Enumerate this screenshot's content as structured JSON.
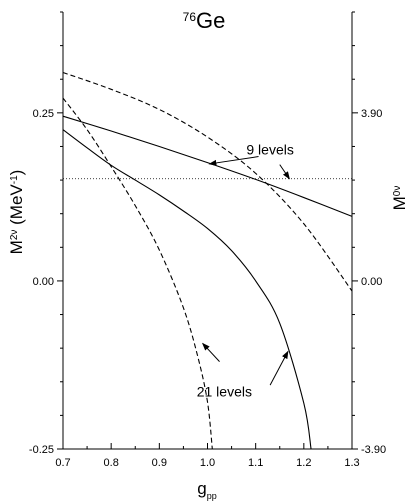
{
  "chart_data": {
    "type": "line",
    "title": {
      "mass_number": "76",
      "element": "Ge"
    },
    "xlabel": {
      "base": "g",
      "sub": "pp"
    },
    "ylabel_left": {
      "base": "M",
      "sup": "2ν",
      "unit_pre": " (MeV",
      "unit_sup": "-1",
      "unit_post": ")"
    },
    "ylabel_right": {
      "base": "M",
      "sup": "0ν"
    },
    "xlim": [
      0.7,
      1.3
    ],
    "ylim": [
      -0.25,
      0.4
    ],
    "x_ticks": [
      {
        "value": 0.7,
        "label": "0.7"
      },
      {
        "value": 0.8,
        "label": "0.8"
      },
      {
        "value": 0.9,
        "label": "0.9"
      },
      {
        "value": 1.0,
        "label": "1.0"
      },
      {
        "value": 1.1,
        "label": "1.1"
      },
      {
        "value": 1.2,
        "label": "1.2"
      },
      {
        "value": 1.3,
        "label": "1.3"
      }
    ],
    "y_left_ticks": [
      {
        "value": 0.25,
        "label": "0.25"
      },
      {
        "value": 0.0,
        "label": "0.00"
      },
      {
        "value": -0.25,
        "label": "-0.25"
      }
    ],
    "y_right_ticks": [
      {
        "value": 0.25,
        "label": "3.90"
      },
      {
        "value": 0.0,
        "label": "0.00"
      },
      {
        "value": -0.25,
        "label": "-3.90"
      }
    ],
    "horizontal_line": {
      "y": 0.152,
      "style": "dotted"
    },
    "series": [
      {
        "style": "solid",
        "x": [
          0.7,
          0.8,
          0.9,
          1.0,
          1.1,
          1.2,
          1.3
        ],
        "y": [
          0.245,
          0.223,
          0.2,
          0.176,
          0.151,
          0.124,
          0.096
        ]
      },
      {
        "style": "dashed",
        "x": [
          0.7,
          0.8,
          0.9,
          1.0,
          1.1,
          1.2,
          1.3
        ],
        "y": [
          0.31,
          0.285,
          0.255,
          0.214,
          0.16,
          0.085,
          -0.015
        ]
      },
      {
        "style": "solid",
        "x": [
          0.7,
          0.75,
          0.8,
          0.85,
          0.9,
          0.95,
          1.0,
          1.05,
          1.1,
          1.15,
          1.2,
          1.215
        ],
        "y": [
          0.225,
          0.198,
          0.172,
          0.15,
          0.128,
          0.104,
          0.078,
          0.045,
          0.0,
          -0.063,
          -0.182,
          -0.25
        ]
      },
      {
        "style": "dashed",
        "x": [
          0.7,
          0.75,
          0.8,
          0.85,
          0.9,
          0.95,
          0.98,
          1.0,
          1.01
        ],
        "y": [
          0.272,
          0.225,
          0.17,
          0.112,
          0.046,
          -0.04,
          -0.113,
          -0.18,
          -0.25
        ]
      }
    ],
    "annotations": [
      {
        "text": "9 levels",
        "anchor": [
          1.13,
          0.188
        ],
        "arrows": [
          {
            "from": [
              1.106,
              0.185
            ],
            "to": [
              1.004,
              0.174
            ]
          },
          {
            "from": [
              1.15,
              0.173
            ],
            "to": [
              1.17,
              0.152
            ]
          }
        ]
      },
      {
        "text": "21 levels",
        "anchor": [
          1.035,
          -0.172
        ],
        "arrows": [
          {
            "from": [
              1.025,
              -0.12
            ],
            "to": [
              0.99,
              -0.093
            ]
          },
          {
            "from": [
              1.13,
              -0.155
            ],
            "to": [
              1.167,
              -0.105
            ]
          }
        ]
      }
    ]
  }
}
